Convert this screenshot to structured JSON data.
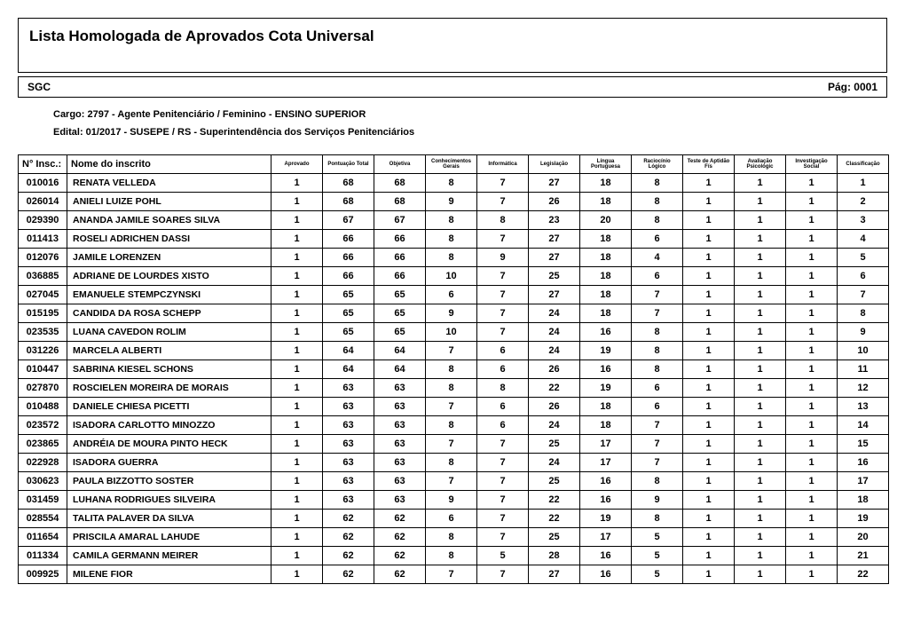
{
  "title": "Lista Homologada de Aprovados Cota Universal",
  "system": "SGC",
  "page_label": "Pág: 0001",
  "cargo": "Cargo: 2797 - Agente Penitenciário / Feminino - ENSINO SUPERIOR",
  "edital": "Edital: 01/2017 - SUSEPE / RS - Superintendência dos Serviços Penitenciários",
  "columns": [
    "N° Insc.:",
    "Nome do inscrito",
    "Aprovado",
    "Pontuação Total",
    "Objetiva",
    "Conhecimentos Gerais",
    "Informática",
    "Legislação",
    "Língua Portuguesa",
    "Raciocínio Lógico",
    "Teste de Aptidão Fís",
    "Avaliação Psicológic",
    "Investigação Social",
    "Classificação"
  ],
  "rows": [
    [
      "010016",
      "RENATA VELLEDA",
      "1",
      "68",
      "68",
      "8",
      "7",
      "27",
      "18",
      "8",
      "1",
      "1",
      "1",
      "1"
    ],
    [
      "026014",
      "ANIELI LUIZE POHL",
      "1",
      "68",
      "68",
      "9",
      "7",
      "26",
      "18",
      "8",
      "1",
      "1",
      "1",
      "2"
    ],
    [
      "029390",
      "ANANDA JAMILE SOARES SILVA",
      "1",
      "67",
      "67",
      "8",
      "8",
      "23",
      "20",
      "8",
      "1",
      "1",
      "1",
      "3"
    ],
    [
      "011413",
      "ROSELI ADRICHEN DASSI",
      "1",
      "66",
      "66",
      "8",
      "7",
      "27",
      "18",
      "6",
      "1",
      "1",
      "1",
      "4"
    ],
    [
      "012076",
      "JAMILE LORENZEN",
      "1",
      "66",
      "66",
      "8",
      "9",
      "27",
      "18",
      "4",
      "1",
      "1",
      "1",
      "5"
    ],
    [
      "036885",
      "ADRIANE DE LOURDES XISTO",
      "1",
      "66",
      "66",
      "10",
      "7",
      "25",
      "18",
      "6",
      "1",
      "1",
      "1",
      "6"
    ],
    [
      "027045",
      "EMANUELE STEMPCZYNSKI",
      "1",
      "65",
      "65",
      "6",
      "7",
      "27",
      "18",
      "7",
      "1",
      "1",
      "1",
      "7"
    ],
    [
      "015195",
      "CANDIDA DA ROSA SCHEPP",
      "1",
      "65",
      "65",
      "9",
      "7",
      "24",
      "18",
      "7",
      "1",
      "1",
      "1",
      "8"
    ],
    [
      "023535",
      "LUANA CAVEDON ROLIM",
      "1",
      "65",
      "65",
      "10",
      "7",
      "24",
      "16",
      "8",
      "1",
      "1",
      "1",
      "9"
    ],
    [
      "031226",
      "MARCELA ALBERTI",
      "1",
      "64",
      "64",
      "7",
      "6",
      "24",
      "19",
      "8",
      "1",
      "1",
      "1",
      "10"
    ],
    [
      "010447",
      "SABRINA KIESEL SCHONS",
      "1",
      "64",
      "64",
      "8",
      "6",
      "26",
      "16",
      "8",
      "1",
      "1",
      "1",
      "11"
    ],
    [
      "027870",
      "ROSCIELEN MOREIRA DE MORAIS",
      "1",
      "63",
      "63",
      "8",
      "8",
      "22",
      "19",
      "6",
      "1",
      "1",
      "1",
      "12"
    ],
    [
      "010488",
      "DANIELE CHIESA PICETTI",
      "1",
      "63",
      "63",
      "7",
      "6",
      "26",
      "18",
      "6",
      "1",
      "1",
      "1",
      "13"
    ],
    [
      "023572",
      "ISADORA CARLOTTO MINOZZO",
      "1",
      "63",
      "63",
      "8",
      "6",
      "24",
      "18",
      "7",
      "1",
      "1",
      "1",
      "14"
    ],
    [
      "023865",
      "ANDRÉIA DE MOURA PINTO HECK",
      "1",
      "63",
      "63",
      "7",
      "7",
      "25",
      "17",
      "7",
      "1",
      "1",
      "1",
      "15"
    ],
    [
      "022928",
      "ISADORA GUERRA",
      "1",
      "63",
      "63",
      "8",
      "7",
      "24",
      "17",
      "7",
      "1",
      "1",
      "1",
      "16"
    ],
    [
      "030623",
      "PAULA BIZZOTTO SOSTER",
      "1",
      "63",
      "63",
      "7",
      "7",
      "25",
      "16",
      "8",
      "1",
      "1",
      "1",
      "17"
    ],
    [
      "031459",
      "LUHANA RODRIGUES SILVEIRA",
      "1",
      "63",
      "63",
      "9",
      "7",
      "22",
      "16",
      "9",
      "1",
      "1",
      "1",
      "18"
    ],
    [
      "028554",
      "TALITA PALAVER DA SILVA",
      "1",
      "62",
      "62",
      "6",
      "7",
      "22",
      "19",
      "8",
      "1",
      "1",
      "1",
      "19"
    ],
    [
      "011654",
      "PRISCILA AMARAL LAHUDE",
      "1",
      "62",
      "62",
      "8",
      "7",
      "25",
      "17",
      "5",
      "1",
      "1",
      "1",
      "20"
    ],
    [
      "011334",
      "CAMILA GERMANN MEIRER",
      "1",
      "62",
      "62",
      "8",
      "5",
      "28",
      "16",
      "5",
      "1",
      "1",
      "1",
      "21"
    ],
    [
      "009925",
      "MILENE FIOR",
      "1",
      "62",
      "62",
      "7",
      "7",
      "27",
      "16",
      "5",
      "1",
      "1",
      "1",
      "22"
    ]
  ],
  "style": {
    "border_color": "#000000",
    "background_color": "#ffffff",
    "title_fontsize": 17,
    "header_fontsize_large": 11,
    "header_fontsize_tiny": 6,
    "cell_fontsize": 11,
    "font_family": "Arial"
  }
}
